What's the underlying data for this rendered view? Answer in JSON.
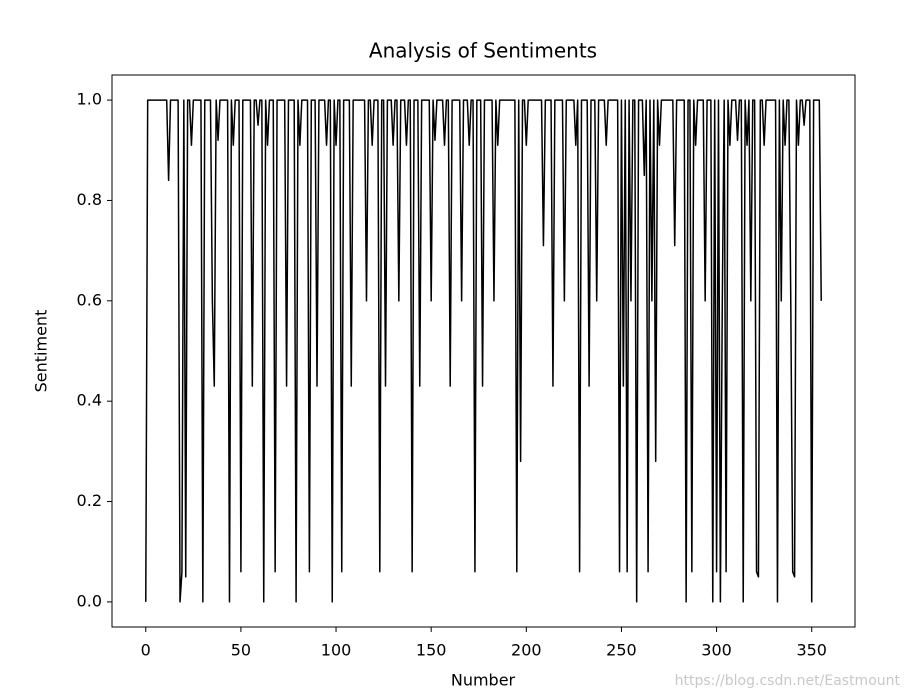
{
  "chart_data": {
    "type": "line",
    "title": "Analysis of Sentiments",
    "xlabel": "Number",
    "ylabel": "Sentiment",
    "watermark": "https://blog.csdn.net/Eastmount",
    "color": "#000000",
    "xlim": [
      -17.75,
      372.75
    ],
    "xticks": [
      0,
      50,
      100,
      150,
      200,
      250,
      300,
      350
    ],
    "ylim": [
      -0.05,
      1.05
    ],
    "yticks": [
      {
        "value": 0,
        "label": "0.0"
      },
      0.2,
      0.4,
      0.6,
      0.8,
      {
        "value": 1,
        "label": "1.0"
      }
    ],
    "values": [
      0,
      1,
      1,
      1,
      1,
      1,
      1,
      1,
      1,
      1,
      1,
      1,
      0.84,
      1,
      1,
      1,
      1,
      1,
      0,
      0.06,
      1,
      0.05,
      1,
      1,
      0.91,
      1,
      1,
      1,
      1,
      1,
      0,
      1,
      1,
      1,
      1,
      0.6,
      0.43,
      1,
      0.92,
      1,
      1,
      1,
      1,
      1,
      0,
      1,
      0.91,
      1,
      1,
      1,
      0.06,
      1,
      1,
      1,
      1,
      1,
      0.43,
      1,
      1,
      0.95,
      1,
      1,
      0,
      1,
      0.91,
      1,
      1,
      1,
      0.06,
      1,
      1,
      1,
      1,
      1,
      0.43,
      1,
      1,
      1,
      1,
      0,
      1,
      0.91,
      1,
      1,
      1,
      1,
      0.06,
      1,
      1,
      1,
      0.43,
      1,
      1,
      1,
      1,
      0.91,
      1,
      1,
      0,
      1,
      0.91,
      1,
      1,
      0.06,
      1,
      1,
      1,
      1,
      0.43,
      1,
      1,
      1,
      1,
      1,
      1,
      1,
      0.6,
      1,
      1,
      0.91,
      1,
      1,
      1,
      0.06,
      1,
      1,
      0.43,
      1,
      1,
      1,
      0.91,
      1,
      1,
      0.6,
      1,
      1,
      1,
      0.91,
      1,
      1,
      0.06,
      1,
      1,
      1,
      0.43,
      1,
      1,
      1,
      1,
      1,
      0.6,
      1,
      0.92,
      1,
      1,
      1,
      1,
      0.91,
      1,
      1,
      0.43,
      1,
      1,
      1,
      1,
      1,
      0.6,
      1,
      1,
      1,
      0.91,
      1,
      1,
      0.06,
      1,
      1,
      1,
      0.43,
      1,
      1,
      1,
      1,
      1,
      0.6,
      1,
      0.91,
      1,
      1,
      1,
      1,
      1,
      1,
      1,
      1,
      1,
      0.06,
      1,
      0.28,
      1,
      1,
      0.91,
      1,
      1,
      1,
      1,
      1,
      1,
      1,
      1,
      0.71,
      1,
      1,
      1,
      1,
      0.43,
      1,
      1,
      1,
      1,
      1,
      0.6,
      1,
      1,
      1,
      1,
      1,
      0.91,
      1,
      0.06,
      1,
      1,
      1,
      1,
      0.43,
      1,
      1,
      1,
      0.6,
      1,
      1,
      1,
      1,
      0.91,
      1,
      1,
      1,
      1,
      1,
      1,
      0.06,
      1,
      0.43,
      1,
      0.06,
      1,
      0.6,
      1,
      1,
      0,
      1,
      1,
      1,
      0.85,
      1,
      0.06,
      1,
      0.6,
      1,
      0.28,
      1,
      0.91,
      1,
      1,
      1,
      1,
      1,
      1,
      1,
      0.71,
      1,
      1,
      1,
      1,
      1,
      0,
      1,
      1,
      0.06,
      1,
      0.91,
      1,
      1,
      1,
      1,
      0.6,
      1,
      1,
      1,
      0,
      1,
      0.06,
      1,
      0,
      0.6,
      1,
      0.06,
      1,
      0.91,
      1,
      1,
      1,
      0.92,
      1,
      1,
      0,
      1,
      0.91,
      1,
      0.6,
      1,
      1,
      0.06,
      0.05,
      1,
      1,
      0.91,
      1,
      1,
      1,
      1,
      1,
      1,
      0,
      1,
      0.6,
      1,
      0.91,
      1,
      1,
      0.6,
      0.06,
      0.05,
      1,
      0.91,
      1,
      1,
      0.95,
      1,
      1,
      1,
      0,
      1,
      1,
      1,
      1,
      0.6
    ]
  }
}
